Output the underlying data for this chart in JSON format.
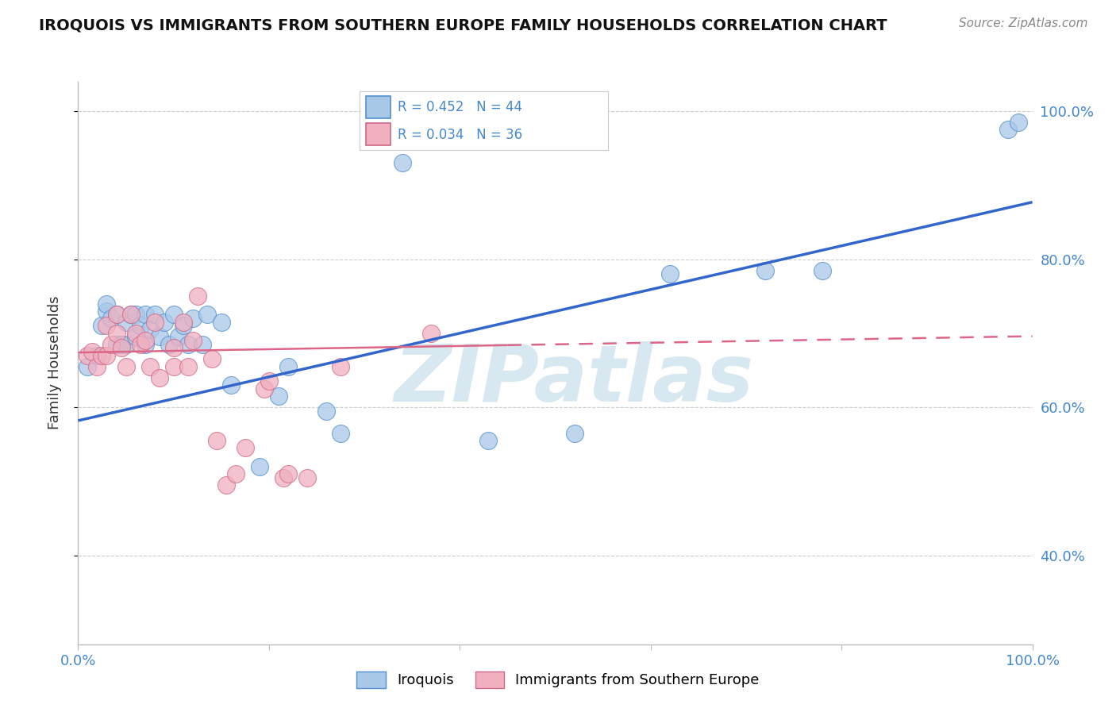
{
  "title": "IROQUOIS VS IMMIGRANTS FROM SOUTHERN EUROPE FAMILY HOUSEHOLDS CORRELATION CHART",
  "source": "Source: ZipAtlas.com",
  "ylabel": "Family Households",
  "blue_R": 0.452,
  "blue_N": 44,
  "pink_R": 0.034,
  "pink_N": 36,
  "blue_fill": "#a8c8e8",
  "blue_edge": "#5090d0",
  "pink_fill": "#f0b0c0",
  "pink_edge": "#d06888",
  "blue_line": "#3366cc",
  "pink_line": "#dd6688",
  "xlim": [
    0.0,
    1.0
  ],
  "ylim": [
    0.28,
    1.04
  ],
  "x_ticks": [
    0.0,
    0.2,
    0.4,
    0.6,
    0.8,
    1.0
  ],
  "y_ticks": [
    0.4,
    0.6,
    0.8,
    1.0
  ],
  "blue_x": [
    0.01,
    0.02,
    0.025,
    0.03,
    0.03,
    0.035,
    0.04,
    0.04,
    0.045,
    0.05,
    0.05,
    0.055,
    0.06,
    0.06,
    0.065,
    0.07,
    0.07,
    0.075,
    0.08,
    0.085,
    0.09,
    0.095,
    0.1,
    0.105,
    0.11,
    0.115,
    0.12,
    0.13,
    0.135,
    0.15,
    0.16,
    0.19,
    0.21,
    0.22,
    0.26,
    0.275,
    0.34,
    0.43,
    0.52,
    0.62,
    0.72,
    0.78,
    0.975,
    0.985
  ],
  "blue_y": [
    0.655,
    0.67,
    0.71,
    0.73,
    0.74,
    0.72,
    0.685,
    0.725,
    0.685,
    0.715,
    0.685,
    0.725,
    0.695,
    0.725,
    0.71,
    0.685,
    0.725,
    0.705,
    0.725,
    0.695,
    0.715,
    0.685,
    0.725,
    0.695,
    0.71,
    0.685,
    0.72,
    0.685,
    0.725,
    0.715,
    0.63,
    0.52,
    0.615,
    0.655,
    0.595,
    0.565,
    0.93,
    0.555,
    0.565,
    0.78,
    0.785,
    0.785,
    0.975,
    0.985
  ],
  "pink_x": [
    0.01,
    0.015,
    0.02,
    0.025,
    0.03,
    0.03,
    0.035,
    0.04,
    0.04,
    0.045,
    0.05,
    0.055,
    0.06,
    0.065,
    0.07,
    0.075,
    0.08,
    0.085,
    0.1,
    0.1,
    0.11,
    0.115,
    0.12,
    0.125,
    0.14,
    0.145,
    0.155,
    0.165,
    0.175,
    0.195,
    0.2,
    0.215,
    0.22,
    0.24,
    0.275,
    0.37
  ],
  "pink_y": [
    0.67,
    0.675,
    0.655,
    0.67,
    0.67,
    0.71,
    0.685,
    0.7,
    0.725,
    0.68,
    0.655,
    0.725,
    0.7,
    0.685,
    0.69,
    0.655,
    0.715,
    0.64,
    0.655,
    0.68,
    0.715,
    0.655,
    0.69,
    0.75,
    0.665,
    0.555,
    0.495,
    0.51,
    0.545,
    0.625,
    0.635,
    0.505,
    0.51,
    0.505,
    0.655,
    0.7
  ],
  "bg_color": "#ffffff",
  "grid_color": "#cccccc",
  "accent_color": "#4488cc",
  "title_color": "#111111",
  "source_color": "#888888",
  "watermark_color": "#d8e8f0"
}
